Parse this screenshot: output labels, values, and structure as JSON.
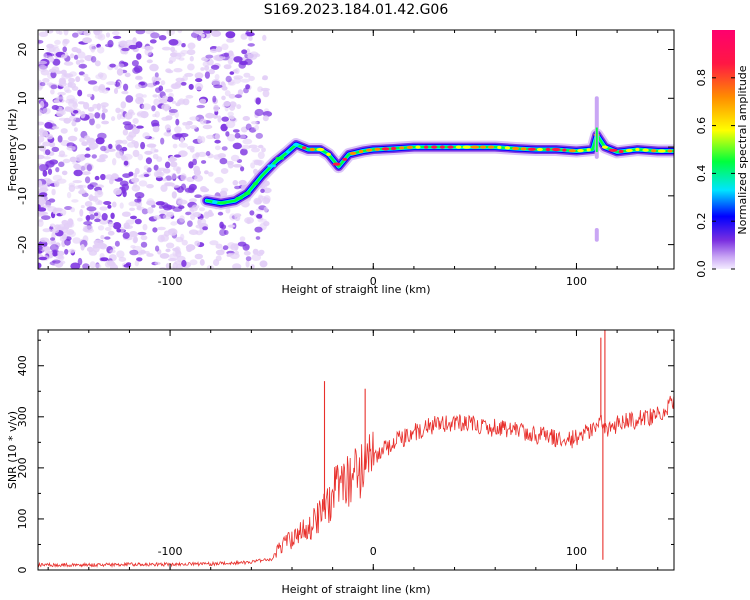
{
  "title": "S169.2023.184.01.42.G06",
  "colors": {
    "trace": "#e8302c",
    "noise_light": "#e3cff7",
    "noise_dark": "#7a2fe0"
  },
  "chart_data": [
    {
      "type": "heatmap",
      "title": "S169.2023.184.01.42.G06",
      "xlabel": "Height of straight line (km)",
      "ylabel": "Frequency (Hz)",
      "xlim": [
        -165,
        148
      ],
      "ylim": [
        -25,
        24
      ],
      "xticks": [
        -100,
        0,
        100
      ],
      "yticks": [
        -20,
        -10,
        0,
        10,
        20
      ],
      "colorbar": {
        "label": "Normalized spectral amplitude",
        "range": [
          0.0,
          1.0
        ],
        "ticks": [
          0.0,
          0.2,
          0.4,
          0.6,
          0.8
        ],
        "tick_labels": [
          "0.0",
          "0.2",
          "0.4",
          "0.6",
          "0.8"
        ],
        "colors": [
          "#f4ecff",
          "#c9a6f4",
          "#7a2fe0",
          "#0000ff",
          "#00e5ff",
          "#00ff3c",
          "#ffff00",
          "#ff8c00",
          "#ff1744",
          "#ff006e"
        ]
      },
      "ridge": {
        "x": [
          -82,
          -75,
          -68,
          -62,
          -55,
          -48,
          -42,
          -38,
          -32,
          -26,
          -22,
          -17,
          -12,
          -5,
          0,
          10,
          20,
          30,
          40,
          50,
          60,
          70,
          80,
          90,
          100,
          108,
          110,
          114,
          120,
          130,
          140,
          148
        ],
        "y": [
          -11,
          -11.5,
          -11,
          -9.5,
          -6,
          -3,
          -1,
          0.5,
          -0.5,
          -0.5,
          -1.5,
          -4,
          -1.5,
          -0.8,
          -0.5,
          -0.3,
          0,
          0,
          0,
          0,
          0,
          -0.3,
          -0.5,
          -0.5,
          -0.8,
          -0.5,
          2.5,
          0,
          -1,
          -0.5,
          -0.8,
          -0.8
        ]
      },
      "noise_region_x": [
        -165,
        -60
      ],
      "grid": false
    },
    {
      "type": "line",
      "xlabel": "Height of straight line (km)",
      "ylabel": "SNR (10 * v/v)",
      "xlim": [
        -165,
        148
      ],
      "ylim": [
        0,
        470
      ],
      "xticks": [
        -100,
        0,
        100
      ],
      "yticks": [
        0,
        100,
        200,
        300,
        400
      ],
      "series": [
        {
          "x": [
            -165,
            -140,
            -120,
            -100,
            -80,
            -60,
            -50,
            -45,
            -40,
            -30,
            -25,
            -20,
            -15,
            -10,
            -5,
            0,
            10,
            20,
            30,
            40,
            50,
            60,
            70,
            80,
            90,
            95,
            100,
            105,
            110,
            112,
            114,
            116,
            120,
            130,
            140,
            148
          ],
          "y": [
            10,
            10,
            11,
            11,
            12,
            15,
            22,
            50,
            60,
            90,
            110,
            150,
            170,
            180,
            190,
            220,
            250,
            270,
            285,
            290,
            285,
            278,
            272,
            265,
            258,
            250,
            260,
            270,
            285,
            300,
            270,
            280,
            285,
            295,
            305,
            330
          ]
        }
      ],
      "spikes": [
        {
          "x": -24,
          "y": 370
        },
        {
          "x": -4,
          "y": 355
        },
        {
          "x": 112,
          "y": 455
        },
        {
          "x": 113,
          "y": 20
        },
        {
          "x": 114,
          "y": 470
        }
      ],
      "grid": false
    }
  ]
}
